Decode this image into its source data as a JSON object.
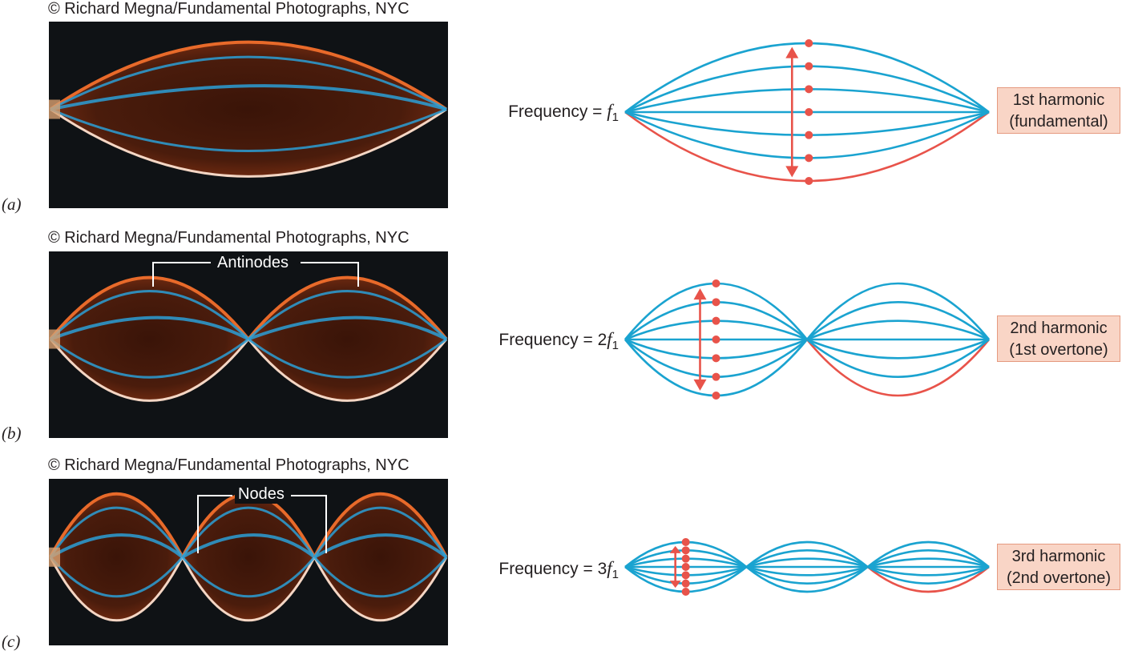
{
  "panels": [
    {
      "label": "(a)",
      "credit": "© Richard Megna/Fundamental Photographs, NYC",
      "frequency_prefix": "Frequency = ",
      "frequency_multiplier": "",
      "frequency_var": "f",
      "frequency_sub": "1",
      "harmonic_line1": "1st harmonic",
      "harmonic_line2": "(fundamental)",
      "loops": 1
    },
    {
      "label": "(b)",
      "credit": "© Richard Megna/Fundamental Photographs, NYC",
      "frequency_prefix": "Frequency = ",
      "frequency_multiplier": "2",
      "frequency_var": "f",
      "frequency_sub": "1",
      "harmonic_line1": "2nd harmonic",
      "harmonic_line2": "(1st overtone)",
      "loops": 2,
      "annotation": "Antinodes"
    },
    {
      "label": "(c)",
      "credit": "© Richard Megna/Fundamental Photographs, NYC",
      "frequency_prefix": "Frequency = ",
      "frequency_multiplier": "3",
      "frequency_var": "f",
      "frequency_sub": "1",
      "harmonic_line1": "3rd harmonic",
      "harmonic_line2": "(2nd overtone)",
      "loops": 3,
      "annotation": "Nodes"
    }
  ],
  "colors": {
    "string_blue": "#1aa3d0",
    "string_red": "#e8534a",
    "photo_background": "#0f1215",
    "photo_orange": "#e86a2a",
    "label_box": "#f9d5c6"
  }
}
